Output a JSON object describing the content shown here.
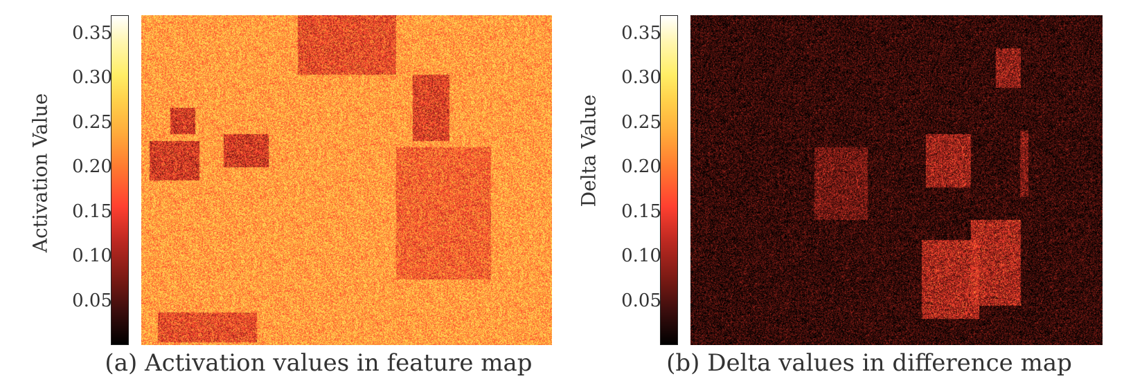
{
  "chart_data": [
    {
      "type": "heatmap",
      "caption": "(a) Activation values in feature map",
      "colorbar": {
        "label": "Activation Value",
        "ticks": [
          "0.05",
          "0.10",
          "0.15",
          "0.20",
          "0.25",
          "0.30",
          "0.35"
        ],
        "tick_values": [
          0.05,
          0.1,
          0.15,
          0.2,
          0.25,
          0.3,
          0.35
        ],
        "range": [
          0.0,
          0.37
        ],
        "colormap": [
          "#000000",
          "#7a1a14",
          "#ff4030",
          "#ffaa3a",
          "#ffee66",
          "#ffffff"
        ]
      },
      "background_value": 0.22,
      "regions": [
        {
          "x": [
            0.38,
            0.62
          ],
          "y": [
            0.0,
            0.18
          ],
          "value": 0.15
        },
        {
          "x": [
            0.02,
            0.14
          ],
          "y": [
            0.38,
            0.5
          ],
          "value": 0.13
        },
        {
          "x": [
            0.2,
            0.31
          ],
          "y": [
            0.36,
            0.46
          ],
          "value": 0.13
        },
        {
          "x": [
            0.04,
            0.28
          ],
          "y": [
            0.9,
            0.99
          ],
          "value": 0.15
        },
        {
          "x": [
            0.07,
            0.13
          ],
          "y": [
            0.28,
            0.36
          ],
          "value": 0.13
        },
        {
          "x": [
            0.62,
            0.85
          ],
          "y": [
            0.4,
            0.8
          ],
          "value": 0.17
        },
        {
          "x": [
            0.66,
            0.75
          ],
          "y": [
            0.18,
            0.38
          ],
          "value": 0.14
        }
      ]
    },
    {
      "type": "heatmap",
      "caption": "(b) Delta values in difference map",
      "colorbar": {
        "label": "Delta Value",
        "ticks": [
          "0.05",
          "0.10",
          "0.15",
          "0.20",
          "0.25",
          "0.30",
          "0.35"
        ],
        "tick_values": [
          0.05,
          0.1,
          0.15,
          0.2,
          0.25,
          0.3,
          0.35
        ],
        "range": [
          0.0,
          0.37
        ],
        "colormap": [
          "#000000",
          "#7a1a14",
          "#ff4030",
          "#ffaa3a",
          "#ffee66",
          "#ffffff"
        ]
      },
      "background_value": 0.03,
      "regions": [
        {
          "x": [
            0.56,
            0.7
          ],
          "y": [
            0.68,
            0.92
          ],
          "value": 0.12
        },
        {
          "x": [
            0.68,
            0.8
          ],
          "y": [
            0.62,
            0.88
          ],
          "value": 0.12
        },
        {
          "x": [
            0.57,
            0.68
          ],
          "y": [
            0.36,
            0.52
          ],
          "value": 0.11
        },
        {
          "x": [
            0.3,
            0.43
          ],
          "y": [
            0.4,
            0.62
          ],
          "value": 0.08
        },
        {
          "x": [
            0.74,
            0.8
          ],
          "y": [
            0.1,
            0.22
          ],
          "value": 0.1
        },
        {
          "x": [
            0.8,
            0.82
          ],
          "y": [
            0.35,
            0.55
          ],
          "value": 0.09
        }
      ]
    }
  ]
}
